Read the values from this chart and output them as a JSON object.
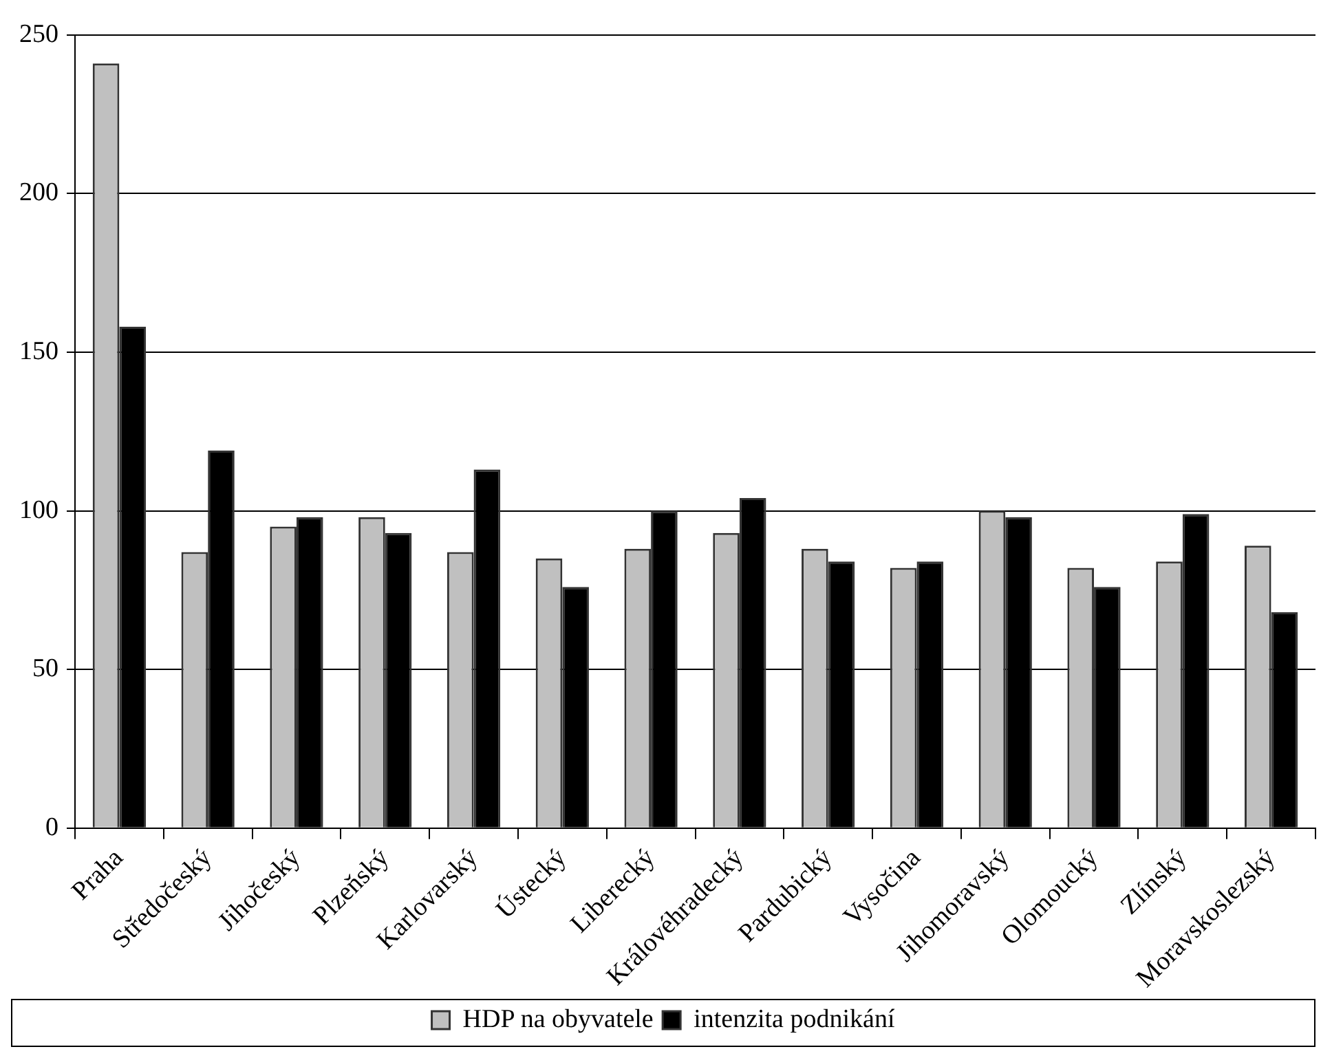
{
  "chart_data": {
    "type": "bar",
    "categories": [
      "Praha",
      "Středočeský",
      "Jihočeský",
      "Plzeňský",
      "Karlovarský",
      "Ústecký",
      "Liberecký",
      "Královéhradecký",
      "Pardubický",
      "Vysočina",
      "Jihomoravský",
      "Olomoucký",
      "Zlínský",
      "Moravskoslezský"
    ],
    "series": [
      {
        "name": "HDP na obyvatele",
        "color": "#c0c0c0",
        "values": [
          241,
          87,
          95,
          98,
          87,
          85,
          88,
          93,
          88,
          82,
          100,
          82,
          84,
          89
        ]
      },
      {
        "name": "intenzita podnikání",
        "color": "#000000",
        "values": [
          158,
          119,
          98,
          93,
          113,
          76,
          100,
          104,
          84,
          84,
          98,
          76,
          99,
          68
        ]
      }
    ],
    "ylim": [
      0,
      250
    ],
    "yticks": [
      0,
      50,
      100,
      150,
      200,
      250
    ],
    "grid": "y",
    "legend": "bottom"
  }
}
